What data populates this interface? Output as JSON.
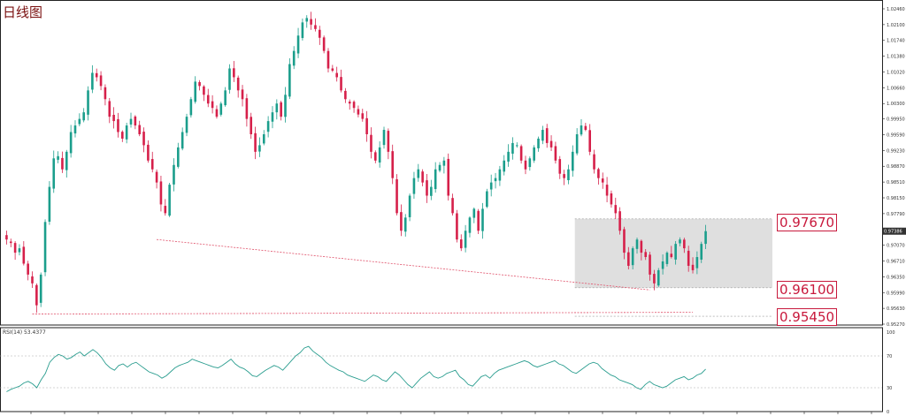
{
  "title": "日线图",
  "rsi_label": "RSI(14) 53.4377",
  "callouts": {
    "upper": "0.97670",
    "lower": "0.96100",
    "support": "0.95450"
  },
  "current_price": "0.97386",
  "colors": {
    "bull": "#1b9e8c",
    "bear": "#d6204a",
    "rsi_line": "#2a9d8f",
    "trendline": "#e0526b",
    "box": "#d9d9d9"
  },
  "chart_data": [
    {
      "type": "candlestick",
      "title": "日线图",
      "ylim": [
        0.9525,
        1.025
      ],
      "yticks": [
        "1.02460",
        "1.02100",
        "1.01740",
        "1.01380",
        "1.01020",
        "1.00660",
        "1.00300",
        "0.99950",
        "0.99590",
        "0.99230",
        "0.98870",
        "0.98510",
        "0.98150",
        "0.97790",
        "0.97430",
        "0.97070",
        "0.96710",
        "0.96350",
        "0.95990",
        "0.95630",
        "0.95270"
      ],
      "key_levels": [
        0.9767,
        0.961,
        0.9545
      ],
      "highlight_box": {
        "from_index": 133,
        "to_index": 159,
        "y_top": 0.9767,
        "y_bottom": 0.961
      },
      "trendlines": [
        {
          "x1_index": 35,
          "y1": 0.972,
          "x2_index": 150,
          "y2": 0.9605
        },
        {
          "x1_index": 6,
          "y1": 0.955,
          "x2_index": 160,
          "y2": 0.9554
        }
      ],
      "closes": [
        0.972,
        0.9712,
        0.969,
        0.97,
        0.9665,
        0.964,
        0.962,
        0.957,
        0.964,
        0.976,
        0.984,
        0.9905,
        0.991,
        0.988,
        0.992,
        0.9965,
        0.998,
        0.9995,
        1.001,
        1.006,
        1.01,
        1.009,
        1.007,
        1.004,
        1.0,
        0.999,
        0.9965,
        0.995,
        0.998,
        0.9995,
        0.998,
        0.996,
        0.9935,
        0.99,
        0.988,
        0.985,
        0.98,
        0.978,
        0.9845,
        0.989,
        0.993,
        0.9965,
        1.0,
        1.004,
        1.008,
        1.007,
        1.005,
        1.003,
        1.002,
        1.0,
        1.003,
        1.006,
        1.011,
        1.009,
        1.006,
        1.004,
        0.9995,
        0.996,
        0.992,
        0.9935,
        0.996,
        0.999,
        1.001,
        1.003,
        1.0,
        1.005,
        1.012,
        1.015,
        1.0185,
        1.0215,
        1.0225,
        1.021,
        1.02,
        1.018,
        1.015,
        1.011,
        1.0105,
        1.009,
        1.006,
        1.004,
        1.003,
        1.002,
        1.0005,
        0.9995,
        0.996,
        0.992,
        0.99,
        0.993,
        0.997,
        0.992,
        0.986,
        0.978,
        0.974,
        0.977,
        0.982,
        0.986,
        0.988,
        0.985,
        0.982,
        0.984,
        0.988,
        0.989,
        0.99,
        0.982,
        0.978,
        0.972,
        0.97,
        0.974,
        0.977,
        0.979,
        0.974,
        0.979,
        0.983,
        0.985,
        0.986,
        0.988,
        0.99,
        0.992,
        0.994,
        0.9935,
        0.99,
        0.988,
        0.9905,
        0.993,
        0.995,
        0.997,
        0.994,
        0.993,
        0.99,
        0.987,
        0.986,
        0.988,
        0.992,
        0.996,
        0.998,
        0.997,
        0.992,
        0.988,
        0.986,
        0.985,
        0.982,
        0.98,
        0.978,
        0.974,
        0.969,
        0.966,
        0.97,
        0.972,
        0.969,
        0.968,
        0.964,
        0.962,
        0.965,
        0.967,
        0.969,
        0.968,
        0.971,
        0.972,
        0.97,
        0.966,
        0.965,
        0.968,
        0.971,
        0.9739
      ]
    },
    {
      "type": "line",
      "title": "RSI(14) 53.4377",
      "ylim": [
        0,
        100
      ],
      "yticks": [
        "100",
        "70",
        "30",
        "0"
      ],
      "levels": [
        70,
        30
      ],
      "values": [
        25,
        28,
        30,
        32,
        36,
        38,
        35,
        30,
        40,
        48,
        62,
        68,
        72,
        70,
        66,
        68,
        72,
        75,
        70,
        74,
        78,
        74,
        68,
        60,
        55,
        52,
        58,
        60,
        56,
        60,
        62,
        58,
        54,
        50,
        48,
        46,
        42,
        45,
        50,
        55,
        58,
        60,
        62,
        66,
        64,
        62,
        60,
        58,
        56,
        55,
        58,
        62,
        66,
        60,
        56,
        54,
        50,
        45,
        44,
        48,
        52,
        55,
        58,
        56,
        52,
        58,
        64,
        70,
        74,
        80,
        82,
        76,
        72,
        68,
        62,
        58,
        55,
        52,
        50,
        46,
        44,
        42,
        40,
        38,
        42,
        46,
        44,
        40,
        38,
        44,
        50,
        46,
        40,
        34,
        30,
        36,
        42,
        46,
        50,
        44,
        42,
        44,
        48,
        50,
        52,
        44,
        40,
        34,
        32,
        38,
        44,
        46,
        42,
        48,
        52,
        54,
        56,
        58,
        60,
        62,
        64,
        62,
        58,
        56,
        58,
        60,
        62,
        64,
        60,
        58,
        54,
        50,
        48,
        52,
        56,
        60,
        62,
        60,
        54,
        50,
        46,
        44,
        40,
        38,
        36,
        34,
        30,
        28,
        34,
        38,
        34,
        32,
        30,
        32,
        36,
        40,
        42,
        44,
        40,
        42,
        46,
        48,
        53.4
      ]
    }
  ]
}
